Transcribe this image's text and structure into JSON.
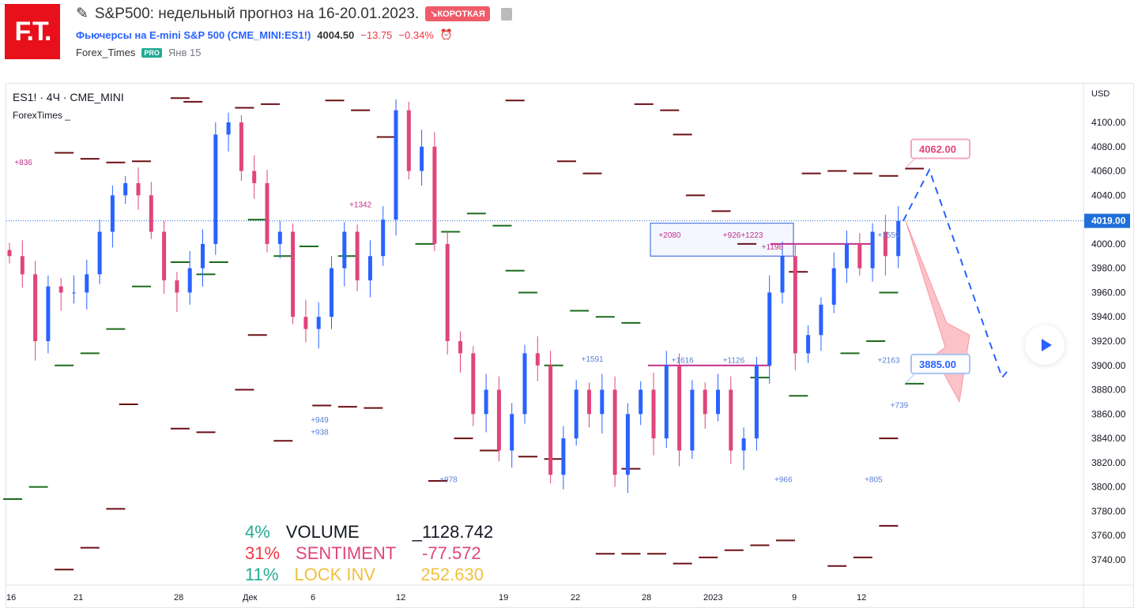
{
  "header": {
    "logo": "F.T.",
    "title": "S&P500: недельный прогноз на 16-20.01.2023.",
    "badge": "↘КОРОТКАЯ",
    "symbol_name": "Фьючерсы на E-mini S&P 500",
    "symbol_code": "CME_MINI:ES1!",
    "price": "4004.50",
    "change": "−13.75",
    "change_pct": "−0.34%",
    "author": "Forex_Times",
    "author_badge": "PRO",
    "date": "Янв 15"
  },
  "chart_legend": {
    "line1": "ES1! · 4Ч · CME_MINI",
    "line2": "ForexTimes _"
  },
  "stats": [
    {
      "pct": "4%",
      "label": "VOLUME",
      "value": "_1128.742",
      "pct_color": "#22ab94",
      "color": "#131722"
    },
    {
      "pct": "31%",
      "label": "SENTIMENT",
      "value": "-77.572",
      "pct_color": "#f23645",
      "color": "#e0457b"
    },
    {
      "pct": "11%",
      "label": "LOCK INV",
      "value": "252.630",
      "pct_color": "#22ab94",
      "color": "#f0c040"
    }
  ],
  "colors": {
    "up": "#2962ff",
    "down": "#e0457b",
    "current": "#1e6fd9",
    "target_high": "#e0457b",
    "target_low": "#2962ff"
  },
  "chart_data": {
    "type": "candlestick",
    "currency": "USD",
    "ylim": [
      3720,
      4120
    ],
    "yticks": [
      "4100.00",
      "4080.00",
      "4060.00",
      "4040.00",
      "4019.00",
      "4000.00",
      "3980.00",
      "3960.00",
      "3940.00",
      "3920.00",
      "3900.00",
      "3880.00",
      "3860.00",
      "3840.00",
      "3820.00",
      "3800.00",
      "3780.00",
      "3760.00",
      "3740.00"
    ],
    "xticks": [
      "16",
      "21",
      "28",
      "Дек",
      "6",
      "12",
      "19",
      "22",
      "28",
      "2023",
      "9",
      "12"
    ],
    "closes": [
      3990,
      3975,
      3920,
      3965,
      3960,
      3960,
      3975,
      4010,
      4040,
      4050,
      4040,
      4010,
      3970,
      3960,
      3980,
      4000,
      4090,
      4100,
      4060,
      4050,
      4000,
      4010,
      3940,
      3930,
      3940,
      3980,
      4010,
      3970,
      3990,
      4020,
      4110,
      4060,
      4080,
      4000,
      3920,
      3910,
      3860,
      3880,
      3830,
      3860,
      3910,
      3900,
      3810,
      3840,
      3880,
      3860,
      3880,
      3810,
      3860,
      3880,
      3840,
      3900,
      3830,
      3880,
      3860,
      3880,
      3830,
      3840,
      3900,
      3960,
      3990,
      3910,
      3925,
      3950,
      3980,
      4000,
      3980,
      4010,
      3990,
      4019
    ],
    "current_price": "4019.00",
    "targets": [
      {
        "label": "4062.00",
        "value": 4062
      },
      {
        "label": "3885.00",
        "value": 3885
      }
    ],
    "annotations": [
      {
        "t": "+836",
        "p": 4065,
        "b": 1
      },
      {
        "t": "+1342",
        "p": 4030,
        "b": 27
      },
      {
        "t": "+2080",
        "p": 4005,
        "b": 51
      },
      {
        "t": "+926+1223",
        "p": 4005,
        "b": 56
      },
      {
        "t": "+1198",
        "p": 3998,
        "b": 59
      },
      {
        "t": "+1559",
        "p": 4005,
        "b": 68
      },
      {
        "t": "+1616",
        "p": 3902,
        "b": 52
      },
      {
        "t": "+1126",
        "p": 3902,
        "b": 56
      },
      {
        "t": "+1591",
        "p": 3903,
        "b": 45
      },
      {
        "t": "+2163",
        "p": 3902,
        "b": 68
      },
      {
        "t": "+949",
        "p": 3853,
        "b": 24
      },
      {
        "t": "+938",
        "p": 3843,
        "b": 24
      },
      {
        "t": "+978",
        "p": 3804,
        "b": 34
      },
      {
        "t": "+966",
        "p": 3804,
        "b": 60
      },
      {
        "t": "+805",
        "p": 3804,
        "b": 67
      },
      {
        "t": "+739",
        "p": 3865,
        "b": 69
      }
    ],
    "levels_resistance": [
      [
        4120,
        13
      ],
      [
        4117,
        14
      ],
      [
        4112,
        18
      ],
      [
        4115,
        20
      ],
      [
        4118,
        25
      ],
      [
        4110,
        27
      ],
      [
        4088,
        29
      ],
      [
        4075,
        4
      ],
      [
        4070,
        6
      ],
      [
        4067,
        8
      ],
      [
        4068,
        10
      ],
      [
        4118,
        39
      ],
      [
        4115,
        49
      ],
      [
        4110,
        51
      ],
      [
        4090,
        52
      ],
      [
        4068,
        43
      ],
      [
        4058,
        45
      ],
      [
        4040,
        53
      ],
      [
        4027,
        55
      ],
      [
        4058,
        62
      ],
      [
        4060,
        64
      ],
      [
        4058,
        66
      ],
      [
        4056,
        68
      ],
      [
        4062,
        70
      ],
      [
        3977,
        61
      ],
      [
        4000,
        57
      ],
      [
        3925,
        19
      ],
      [
        3880,
        18
      ],
      [
        3868,
        9
      ],
      [
        3867,
        24
      ],
      [
        3866,
        26
      ],
      [
        3865,
        28
      ],
      [
        3848,
        13
      ],
      [
        3845,
        15
      ],
      [
        3838,
        21
      ],
      [
        3840,
        35
      ],
      [
        3830,
        37
      ],
      [
        3825,
        40
      ],
      [
        3823,
        42
      ],
      [
        3815,
        48
      ],
      [
        3805,
        33
      ],
      [
        3782,
        8
      ],
      [
        3768,
        68
      ],
      [
        3750,
        6
      ],
      [
        3745,
        46
      ],
      [
        3745,
        48
      ],
      [
        3745,
        50
      ],
      [
        3737,
        52
      ],
      [
        3742,
        54
      ],
      [
        3748,
        56
      ],
      [
        3752,
        58
      ],
      [
        3756,
        60
      ],
      [
        3735,
        64
      ],
      [
        3742,
        66
      ],
      [
        3732,
        4
      ],
      [
        3840,
        68
      ]
    ],
    "levels_support": [
      [
        3790,
        0
      ],
      [
        3800,
        2
      ],
      [
        3900,
        4
      ],
      [
        3910,
        6
      ],
      [
        3930,
        8
      ],
      [
        3965,
        10
      ],
      [
        3985,
        13
      ],
      [
        3975,
        15
      ],
      [
        3985,
        16
      ],
      [
        4020,
        19
      ],
      [
        3990,
        21
      ],
      [
        3998,
        23
      ],
      [
        3990,
        26
      ],
      [
        4000,
        32
      ],
      [
        4010,
        34
      ],
      [
        4025,
        36
      ],
      [
        4015,
        38
      ],
      [
        3978,
        39
      ],
      [
        3960,
        40
      ],
      [
        3945,
        44
      ],
      [
        3940,
        46
      ],
      [
        3935,
        48
      ],
      [
        3900,
        42
      ],
      [
        3890,
        58
      ],
      [
        3875,
        61
      ],
      [
        3910,
        65
      ],
      [
        3920,
        67
      ],
      [
        3960,
        68
      ],
      [
        3885,
        70
      ]
    ]
  }
}
